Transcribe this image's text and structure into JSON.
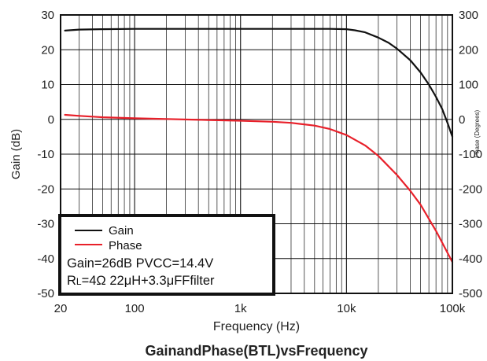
{
  "chart_data": {
    "type": "line",
    "title": "GainandPhase(BTL)vsFrequency",
    "xlabel": "Frequency (Hz)",
    "ylabel": "Gain (dB)",
    "y2label": "Phase (Degrees)",
    "x_scale": "log",
    "xlim": [
      20,
      100000
    ],
    "ylim": [
      -50,
      30
    ],
    "y2lim": [
      -500,
      300
    ],
    "x_ticks": [
      20,
      100,
      1000,
      10000,
      100000
    ],
    "x_tick_labels": [
      "20",
      "100",
      "1k",
      "10k",
      "100k"
    ],
    "y_ticks": [
      30,
      20,
      10,
      0,
      -10,
      -20,
      -30,
      -40,
      -50
    ],
    "y_tick_labels": [
      "30",
      "20",
      "10",
      "0",
      "-10",
      "-20",
      "-30",
      "-40",
      "-50"
    ],
    "y2_ticks": [
      300,
      200,
      100,
      0,
      -100,
      -200,
      -300,
      -400,
      -500
    ],
    "y2_tick_labels": [
      "300",
      "200",
      "100",
      "0",
      "-100",
      "-200",
      "-300",
      "-400",
      "-500"
    ],
    "grid": true,
    "legend_position": "bottom-left",
    "series": [
      {
        "name": "Gain",
        "color": "#111111",
        "axis": "left",
        "x": [
          22,
          30,
          50,
          100,
          300,
          1000,
          3000,
          7000,
          10000,
          12000,
          15000,
          20000,
          25000,
          30000,
          40000,
          50000,
          60000,
          70000,
          80000,
          90000,
          100000
        ],
        "y": [
          25.5,
          25.8,
          25.9,
          26,
          26,
          26,
          26,
          26,
          25.9,
          25.6,
          25,
          23.5,
          22,
          20.3,
          17,
          13.5,
          10,
          6.5,
          3,
          -1,
          -5
        ]
      },
      {
        "name": "Phase",
        "color": "#e8202a",
        "axis": "right",
        "x": [
          22,
          30,
          50,
          100,
          200,
          500,
          1000,
          2000,
          3000,
          5000,
          7000,
          10000,
          15000,
          20000,
          30000,
          40000,
          50000,
          70000,
          100000
        ],
        "y": [
          13,
          10,
          6,
          3,
          1,
          -2,
          -4,
          -7,
          -10,
          -18,
          -28,
          -45,
          -75,
          -105,
          -160,
          -205,
          -245,
          -320,
          -410
        ]
      }
    ],
    "annotations": [
      "Gain=26dB  PVCC=14.4V",
      "R",
      "L",
      "=4Ω  22μH+3.3μFFfilter"
    ]
  }
}
